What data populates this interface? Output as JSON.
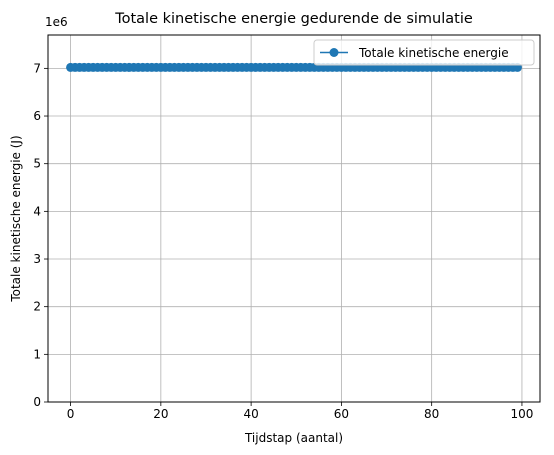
{
  "chart_data": {
    "type": "line",
    "title": "Totale kinetische energie gedurende de simulatie",
    "xlabel": "Tijdstap (aantal)",
    "ylabel": "Totale kinetische energie (J)",
    "y_offset_label": "1e6",
    "xlim": [
      -5,
      104
    ],
    "ylim": [
      0,
      7.7
    ],
    "y_scale_factor": 1000000,
    "x_ticks": [
      0,
      20,
      40,
      60,
      80,
      100
    ],
    "x_tick_labels": [
      "0",
      "20",
      "40",
      "60",
      "80",
      "100"
    ],
    "y_ticks": [
      0,
      1,
      2,
      3,
      4,
      5,
      6,
      7
    ],
    "y_tick_labels": [
      "0",
      "1",
      "2",
      "3",
      "4",
      "5",
      "6",
      "7"
    ],
    "grid": true,
    "legend_position": "top-right",
    "series": [
      {
        "name": "Totale kinetische energie",
        "color": "#1f77b4",
        "marker": "circle",
        "x_start": 0,
        "x_end": 99,
        "x_step": 1,
        "constant_y": 7.02
      }
    ]
  }
}
